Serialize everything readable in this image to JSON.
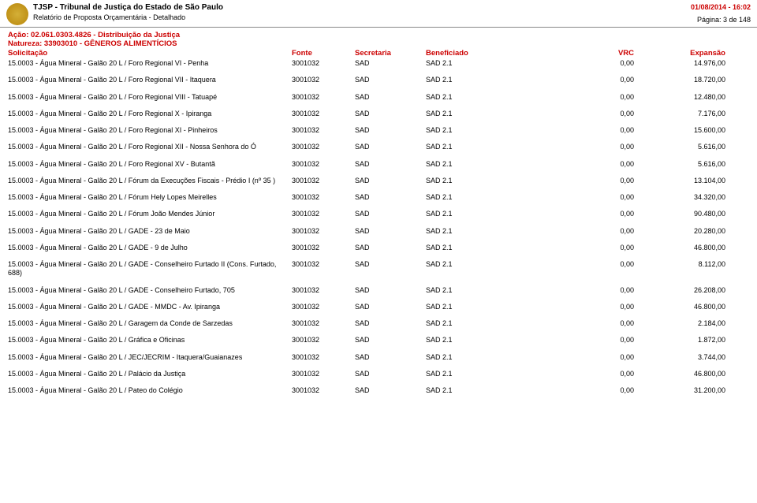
{
  "header": {
    "court_name": "TJSP - Tribunal de Justiça do Estado de São Paulo",
    "report_name": "Relatório de Proposta Orçamentária - Detalhado",
    "datetime": "01/08/2014 - 16:02",
    "page_info": "Página: 3 de 148"
  },
  "action": {
    "line": "Ação: 02.061.0303.4826 - Distribuição da Justiça",
    "nature": "Natureza: 33903010 - GÊNEROS ALIMENTÍCIOS"
  },
  "columns": {
    "solicitacao": "Solicitação",
    "fonte": "Fonte",
    "secretaria": "Secretaria",
    "beneficiado": "Beneficiado",
    "vrc": "VRC",
    "expansao": "Expansão"
  },
  "rows": [
    {
      "sol": "15.0003 - Água Mineral - Galão 20 L / Foro Regional VI - Penha",
      "fonte": "3001032",
      "sec": "SAD",
      "ben": "SAD 2.1",
      "vrc": "0,00",
      "exp": "14.976,00"
    },
    {
      "sol": "15.0003 - Água Mineral - Galão 20 L / Foro Regional VII - Itaquera",
      "fonte": "3001032",
      "sec": "SAD",
      "ben": "SAD 2.1",
      "vrc": "0,00",
      "exp": "18.720,00"
    },
    {
      "sol": "15.0003 - Água Mineral - Galão 20 L / Foro Regional VIII - Tatuapé",
      "fonte": "3001032",
      "sec": "SAD",
      "ben": "SAD 2.1",
      "vrc": "0,00",
      "exp": "12.480,00"
    },
    {
      "sol": "15.0003 - Água Mineral - Galão 20 L / Foro Regional X - Ipiranga",
      "fonte": "3001032",
      "sec": "SAD",
      "ben": "SAD 2.1",
      "vrc": "0,00",
      "exp": "7.176,00"
    },
    {
      "sol": "15.0003 - Água Mineral - Galão 20 L / Foro Regional XI - Pinheiros",
      "fonte": "3001032",
      "sec": "SAD",
      "ben": "SAD 2.1",
      "vrc": "0,00",
      "exp": "15.600,00"
    },
    {
      "sol": "15.0003 - Água Mineral - Galão 20 L / Foro Regional XII - Nossa Senhora do Ó",
      "fonte": "3001032",
      "sec": "SAD",
      "ben": "SAD 2.1",
      "vrc": "0,00",
      "exp": "5.616,00"
    },
    {
      "sol": "15.0003 - Água Mineral - Galão 20 L / Foro Regional XV - Butantã",
      "fonte": "3001032",
      "sec": "SAD",
      "ben": "SAD 2.1",
      "vrc": "0,00",
      "exp": "5.616,00"
    },
    {
      "sol": "15.0003 - Água Mineral - Galão 20 L / Fórum da Execuções Fiscais - Prédio I (nº 35 )",
      "fonte": "3001032",
      "sec": "SAD",
      "ben": "SAD 2.1",
      "vrc": "0,00",
      "exp": "13.104,00"
    },
    {
      "sol": "15.0003 - Água Mineral - Galão 20 L / Fórum Hely Lopes Meirelles",
      "fonte": "3001032",
      "sec": "SAD",
      "ben": "SAD 2.1",
      "vrc": "0,00",
      "exp": "34.320,00"
    },
    {
      "sol": "15.0003 - Água Mineral - Galão 20 L / Fórum João Mendes Júnior",
      "fonte": "3001032",
      "sec": "SAD",
      "ben": "SAD 2.1",
      "vrc": "0,00",
      "exp": "90.480,00"
    },
    {
      "sol": "15.0003 - Água Mineral - Galão 20 L / GADE - 23 de Maio",
      "fonte": "3001032",
      "sec": "SAD",
      "ben": "SAD 2.1",
      "vrc": "0,00",
      "exp": "20.280,00"
    },
    {
      "sol": "15.0003 - Água Mineral - Galão 20 L / GADE - 9 de Julho",
      "fonte": "3001032",
      "sec": "SAD",
      "ben": "SAD 2.1",
      "vrc": "0,00",
      "exp": "46.800,00"
    },
    {
      "sol": "15.0003 - Água Mineral - Galão 20 L / GADE - Conselheiro Furtado II (Cons. Furtado, 688)",
      "fonte": "3001032",
      "sec": "SAD",
      "ben": "SAD 2.1",
      "vrc": "0,00",
      "exp": "8.112,00"
    },
    {
      "sol": "15.0003 - Água Mineral - Galão 20 L / GADE - Conselheiro Furtado, 705",
      "fonte": "3001032",
      "sec": "SAD",
      "ben": "SAD 2.1",
      "vrc": "0,00",
      "exp": "26.208,00"
    },
    {
      "sol": "15.0003 - Água Mineral - Galão 20 L / GADE - MMDC - Av. Ipiranga",
      "fonte": "3001032",
      "sec": "SAD",
      "ben": "SAD 2.1",
      "vrc": "0,00",
      "exp": "46.800,00"
    },
    {
      "sol": "15.0003 - Água Mineral - Galão 20 L / Garagem da Conde de Sarzedas",
      "fonte": "3001032",
      "sec": "SAD",
      "ben": "SAD 2.1",
      "vrc": "0,00",
      "exp": "2.184,00"
    },
    {
      "sol": "15.0003 - Água Mineral - Galão 20 L / Gráfica e Oficinas",
      "fonte": "3001032",
      "sec": "SAD",
      "ben": "SAD 2.1",
      "vrc": "0,00",
      "exp": "1.872,00"
    },
    {
      "sol": "15.0003 - Água Mineral - Galão 20 L / JEC/JECRIM - Itaquera/Guaianazes",
      "fonte": "3001032",
      "sec": "SAD",
      "ben": "SAD 2.1",
      "vrc": "0,00",
      "exp": "3.744,00"
    },
    {
      "sol": "15.0003 - Água Mineral - Galão 20 L / Palácio da Justiça",
      "fonte": "3001032",
      "sec": "SAD",
      "ben": "SAD 2.1",
      "vrc": "0,00",
      "exp": "46.800,00"
    },
    {
      "sol": "15.0003 - Água Mineral - Galão 20 L / Pateo do Colégio",
      "fonte": "3001032",
      "sec": "SAD",
      "ben": "SAD 2.1",
      "vrc": "0,00",
      "exp": "31.200,00"
    }
  ]
}
